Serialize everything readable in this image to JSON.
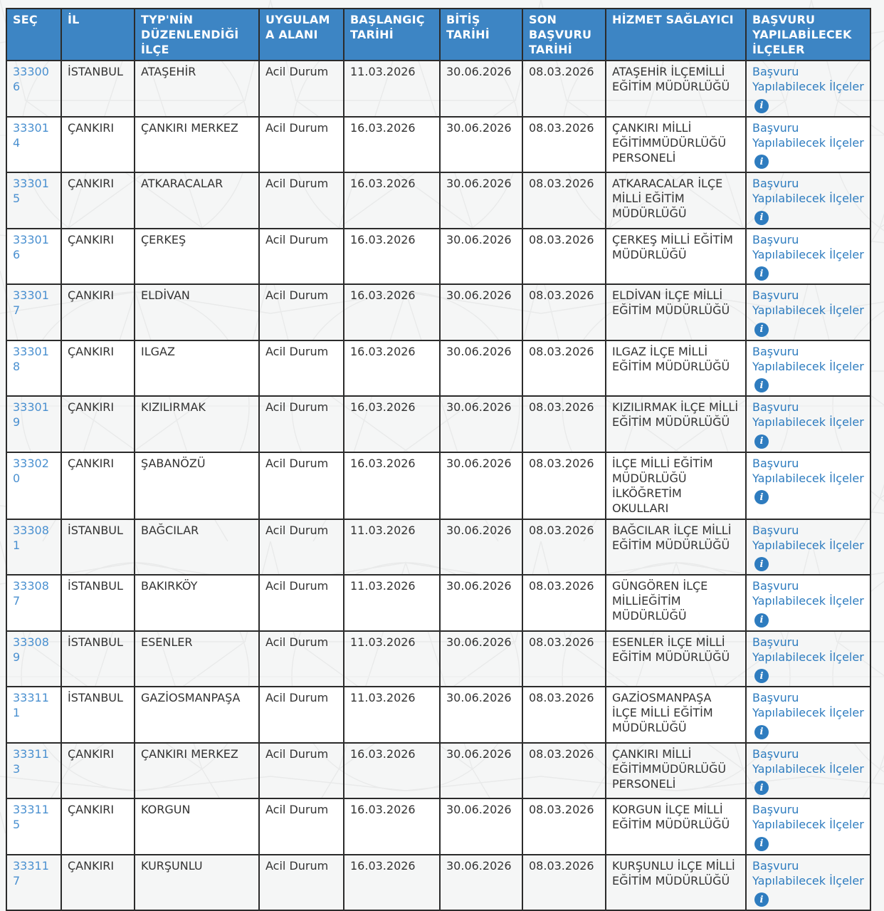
{
  "colors": {
    "header_bg": "#3d85c4",
    "header_text": "#ffffff",
    "border": "#2b2b2b",
    "cell_text": "#333333",
    "id_link": "#4a90d0",
    "link": "#2e7cbf",
    "info_icon_bg": "#2e7cbf",
    "row_alt": "#ffffff",
    "page_bg": "#f5f6f6"
  },
  "table": {
    "columns": [
      {
        "key": "sec",
        "label": "SEÇ"
      },
      {
        "key": "il",
        "label": "İL"
      },
      {
        "key": "ilce",
        "label": "TYP'NİN DÜZENLENDİĞİ İLÇE"
      },
      {
        "key": "alan",
        "label": "UYGULAMA ALANI"
      },
      {
        "key": "baslangic",
        "label": "BAŞLANGIÇ TARİHİ"
      },
      {
        "key": "bitis",
        "label": "BİTİŞ TARİHİ"
      },
      {
        "key": "son_basvuru",
        "label": "SON BAŞVURU TARİHİ"
      },
      {
        "key": "saglayici",
        "label": "HİZMET SAĞLAYICI"
      },
      {
        "key": "basvuru",
        "label": "BAŞVURU YAPILABİLECEK İLÇELER"
      }
    ],
    "link_label": "Başvuru Yapılabilecek İlçeler",
    "info_icon_glyph": "i",
    "rows": [
      {
        "id": "333006",
        "il": "İSTANBUL",
        "ilce": "ATAŞEHİR",
        "alan": "Acil Durum",
        "baslangic": "11.03.2026",
        "bitis": "30.06.2026",
        "son_basvuru": "08.03.2026",
        "saglayici": "ATAŞEHİR İLÇEMİLLİ EĞİTİM MÜDÜRLÜĞÜ"
      },
      {
        "id": "333014",
        "il": "ÇANKIRI",
        "ilce": "ÇANKIRI MERKEZ",
        "alan": "Acil Durum",
        "baslangic": "16.03.2026",
        "bitis": "30.06.2026",
        "son_basvuru": "08.03.2026",
        "saglayici": "ÇANKIRI MİLLİ EĞİTİMMÜDÜRLÜĞÜ PERSONELİ"
      },
      {
        "id": "333015",
        "il": "ÇANKIRI",
        "ilce": "ATKARACALAR",
        "alan": "Acil Durum",
        "baslangic": "16.03.2026",
        "bitis": "30.06.2026",
        "son_basvuru": "08.03.2026",
        "saglayici": "ATKARACALAR İLÇE MİLLİ EĞİTİM MÜDÜRLÜĞÜ"
      },
      {
        "id": "333016",
        "il": "ÇANKIRI",
        "ilce": "ÇERKEŞ",
        "alan": "Acil Durum",
        "baslangic": "16.03.2026",
        "bitis": "30.06.2026",
        "son_basvuru": "08.03.2026",
        "saglayici": "ÇERKEŞ MİLLİ EĞİTİM MÜDÜRLÜĞÜ"
      },
      {
        "id": "333017",
        "il": "ÇANKIRI",
        "ilce": "ELDİVAN",
        "alan": "Acil Durum",
        "baslangic": "16.03.2026",
        "bitis": "30.06.2026",
        "son_basvuru": "08.03.2026",
        "saglayici": "ELDİVAN İLÇE MİLLİ EĞİTİM MÜDÜRLÜĞÜ"
      },
      {
        "id": "333018",
        "il": "ÇANKIRI",
        "ilce": "ILGAZ",
        "alan": "Acil Durum",
        "baslangic": "16.03.2026",
        "bitis": "30.06.2026",
        "son_basvuru": "08.03.2026",
        "saglayici": "ILGAZ İLÇE MİLLİ EĞİTİM MÜDÜRLÜĞÜ"
      },
      {
        "id": "333019",
        "il": "ÇANKIRI",
        "ilce": "KIZILIRMAK",
        "alan": "Acil Durum",
        "baslangic": "16.03.2026",
        "bitis": "30.06.2026",
        "son_basvuru": "08.03.2026",
        "saglayici": "KIZILIRMAK İLÇE MİLLİ EĞİTİM MÜDÜRLÜĞÜ"
      },
      {
        "id": "333020",
        "il": "ÇANKIRI",
        "ilce": "ŞABANÖZÜ",
        "alan": "Acil Durum",
        "baslangic": "16.03.2026",
        "bitis": "30.06.2026",
        "son_basvuru": "08.03.2026",
        "saglayici": "İLÇE MİLLİ EĞİTİM MÜDÜRLÜĞÜ İLKÖĞRETİM OKULLARI"
      },
      {
        "id": "333081",
        "il": "İSTANBUL",
        "ilce": "BAĞCILAR",
        "alan": "Acil Durum",
        "baslangic": "11.03.2026",
        "bitis": "30.06.2026",
        "son_basvuru": "08.03.2026",
        "saglayici": "BAĞCILAR İLÇE MİLLİ EĞİTİM MÜDÜRLÜĞÜ"
      },
      {
        "id": "333087",
        "il": "İSTANBUL",
        "ilce": "BAKIRKÖY",
        "alan": "Acil Durum",
        "baslangic": "11.03.2026",
        "bitis": "30.06.2026",
        "son_basvuru": "08.03.2026",
        "saglayici": "GÜNGÖREN İLÇE MİLLİEĞİTİM MÜDÜRLÜĞÜ"
      },
      {
        "id": "333089",
        "il": "İSTANBUL",
        "ilce": "ESENLER",
        "alan": "Acil Durum",
        "baslangic": "11.03.2026",
        "bitis": "30.06.2026",
        "son_basvuru": "08.03.2026",
        "saglayici": "ESENLER İLÇE MİLLİ EĞİTİM MÜDÜRLÜĞÜ"
      },
      {
        "id": "333111",
        "il": "İSTANBUL",
        "ilce": "GAZİOSMANPAŞA",
        "alan": "Acil Durum",
        "baslangic": "11.03.2026",
        "bitis": "30.06.2026",
        "son_basvuru": "08.03.2026",
        "saglayici": "GAZİOSMANPAŞA İLÇE MİLLİ EĞİTİM MÜDÜRLÜĞÜ"
      },
      {
        "id": "333113",
        "il": "ÇANKIRI",
        "ilce": "ÇANKIRI MERKEZ",
        "alan": "Acil Durum",
        "baslangic": "16.03.2026",
        "bitis": "30.06.2026",
        "son_basvuru": "08.03.2026",
        "saglayici": "ÇANKIRI MİLLİ EĞİTİMMÜDÜRLÜĞÜ PERSONELİ"
      },
      {
        "id": "333115",
        "il": "ÇANKIRI",
        "ilce": "KORGUN",
        "alan": "Acil Durum",
        "baslangic": "16.03.2026",
        "bitis": "30.06.2026",
        "son_basvuru": "08.03.2026",
        "saglayici": "KORGUN İLÇE MİLLİ EĞİTİM MÜDÜRLÜĞÜ"
      },
      {
        "id": "333117",
        "il": "ÇANKIRI",
        "ilce": "KURŞUNLU",
        "alan": "Acil Durum",
        "baslangic": "16.03.2026",
        "bitis": "30.06.2026",
        "son_basvuru": "08.03.2026",
        "saglayici": "KURŞUNLU İLÇE MİLLİ EĞİTİM MÜDÜRLÜĞÜ"
      }
    ]
  }
}
